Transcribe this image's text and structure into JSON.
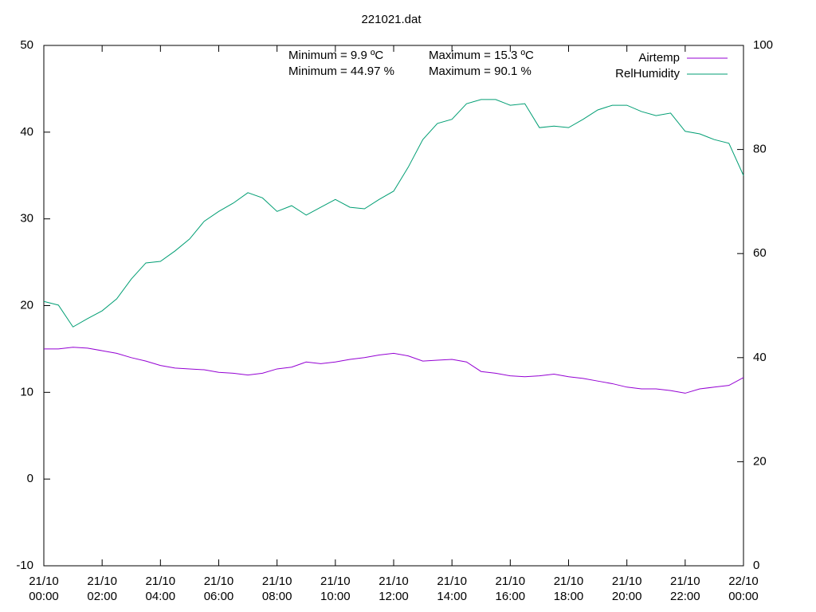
{
  "chart_data": {
    "type": "line",
    "title": "221021.dat",
    "x": [
      0,
      0.5,
      1,
      1.5,
      2,
      2.5,
      3,
      3.5,
      4,
      4.5,
      5,
      5.5,
      6,
      6.5,
      7,
      7.5,
      8,
      8.5,
      9,
      9.5,
      10,
      10.5,
      11,
      11.5,
      12,
      12.5,
      13,
      13.5,
      14,
      14.5,
      15,
      15.5,
      16,
      16.5,
      17,
      17.5,
      18,
      18.5,
      19,
      19.5,
      20,
      20.5,
      21,
      21.5,
      22,
      22.5,
      23,
      23.5,
      24
    ],
    "xlim": [
      0,
      24
    ],
    "xticks": [
      {
        "value": 0,
        "label": "21/10 00:00"
      },
      {
        "value": 2,
        "label": "21/10 02:00"
      },
      {
        "value": 4,
        "label": "21/10 04:00"
      },
      {
        "value": 6,
        "label": "21/10 06:00"
      },
      {
        "value": 8,
        "label": "21/10 08:00"
      },
      {
        "value": 10,
        "label": "21/10 10:00"
      },
      {
        "value": 12,
        "label": "21/10 12:00"
      },
      {
        "value": 14,
        "label": "21/10 14:00"
      },
      {
        "value": 16,
        "label": "21/10 16:00"
      },
      {
        "value": 18,
        "label": "21/10 18:00"
      },
      {
        "value": 20,
        "label": "21/10 20:00"
      },
      {
        "value": 22,
        "label": "21/10 22:00"
      },
      {
        "value": 24,
        "label": "22/10 00:00"
      }
    ],
    "ylim": [
      -10,
      50
    ],
    "yticks": [
      -10,
      0,
      10,
      20,
      30,
      40,
      50
    ],
    "y2lim": [
      0,
      100
    ],
    "y2ticks": [
      0,
      20,
      40,
      60,
      80,
      100
    ],
    "legend": "top right",
    "annotations": [
      "Minimum = 9.9 ºC",
      "Maximum = 15.3 ºC",
      "Minimum = 44.97 %",
      "Maximum = 90.1 %"
    ],
    "series": [
      {
        "name": "Airtemp",
        "color": "#9400d3",
        "axis": "y",
        "values": [
          15.0,
          15.0,
          15.2,
          15.1,
          14.8,
          14.5,
          14.0,
          13.6,
          13.1,
          12.8,
          12.7,
          12.6,
          12.3,
          12.2,
          12.0,
          12.2,
          12.7,
          12.9,
          13.5,
          13.3,
          13.5,
          13.8,
          14.0,
          14.3,
          14.5,
          14.2,
          13.6,
          13.7,
          13.8,
          13.5,
          12.4,
          12.2,
          11.9,
          11.8,
          11.9,
          12.1,
          11.8,
          11.6,
          11.3,
          11.0,
          10.6,
          10.4,
          10.4,
          10.2,
          9.9,
          10.4,
          10.6,
          10.8,
          11.7
        ]
      },
      {
        "name": "RelHumidity",
        "color": "#009e73",
        "axis": "y2",
        "values": [
          50.8,
          50.1,
          45.9,
          47.5,
          49.0,
          51.3,
          55.1,
          58.2,
          58.5,
          60.5,
          62.8,
          66.2,
          68.1,
          69.7,
          71.7,
          70.7,
          68.1,
          69.2,
          67.4,
          68.9,
          70.4,
          68.9,
          68.6,
          70.4,
          72.0,
          76.6,
          81.9,
          85.0,
          85.8,
          88.8,
          89.6,
          89.6,
          88.5,
          88.8,
          84.2,
          84.5,
          84.2,
          85.8,
          87.6,
          88.5,
          88.5,
          87.3,
          86.5,
          87.0,
          83.5,
          83.0,
          81.9,
          81.2,
          75.0
        ]
      }
    ]
  }
}
